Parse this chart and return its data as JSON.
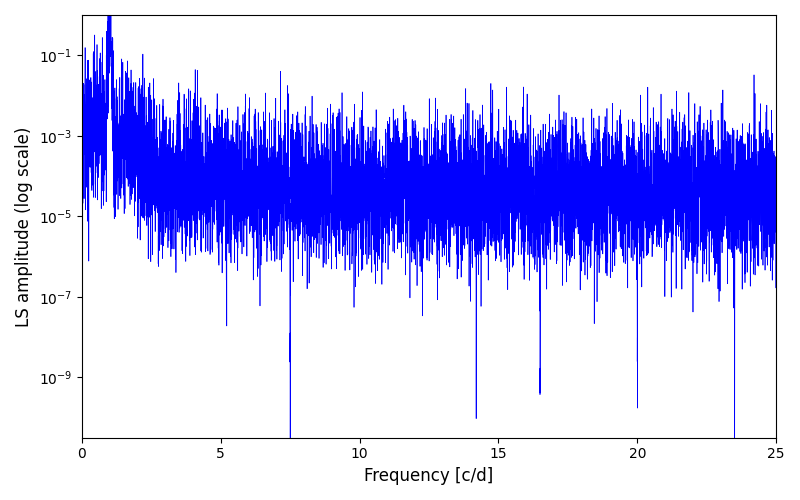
{
  "title": "",
  "xlabel": "Frequency [c/d]",
  "ylabel": "LS amplitude (log scale)",
  "xlim": [
    0,
    25
  ],
  "ylim_log_min": -10.5,
  "ylim_log_max": 0,
  "line_color": "#0000ff",
  "line_width": 0.5,
  "yscale": "log",
  "figsize": [
    8.0,
    5.0
  ],
  "dpi": 100,
  "seed": 1234,
  "n_points": 8000,
  "peak_freq": 1.0,
  "peak_amplitude": 0.3,
  "noise_floor_base": 3e-05,
  "background_color": "#ffffff"
}
